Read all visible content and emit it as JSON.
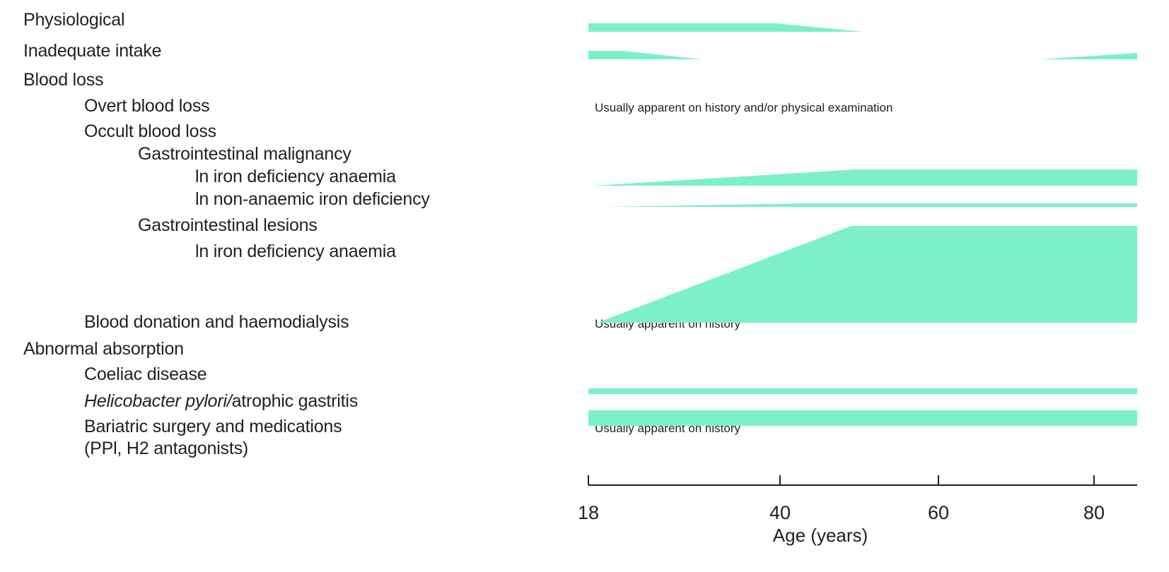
{
  "figure": {
    "labels": [
      {
        "text": "Physiological",
        "indent": 0
      },
      {
        "text": "Inadequate intake",
        "indent": 0
      },
      {
        "text": "Blood loss",
        "indent": 0
      },
      {
        "text": "Overt blood loss",
        "indent": 1
      },
      {
        "text": "Occult blood loss",
        "indent": 1
      },
      {
        "text": "Gastrointestinal malignancy",
        "indent": 2
      },
      {
        "text": "ln iron deficiency anaemia",
        "indent": 3
      },
      {
        "text": "ln non-anaemic iron deficiency",
        "indent": 3
      },
      {
        "text": "Gastrointestinal lesions",
        "indent": 2
      },
      {
        "text": "ln iron deficiency anaemia",
        "indent": 3
      },
      {
        "text": "Blood donation and haemodialysis",
        "indent": 1
      },
      {
        "text": "Abnormal absorption",
        "indent": 0
      },
      {
        "text": "Coeliac disease",
        "indent": 1
      },
      {
        "text_italic": "Helicobacter pylori/",
        "text": "atrophic gastritis",
        "indent": 1
      },
      {
        "text": "Bariatric surgery and medications",
        "indent": 1
      },
      {
        "text": "(PPl, H2 antagonists)",
        "indent": 1
      }
    ]
  },
  "chart_data": {
    "type": "area",
    "xlabel": "Age (years)",
    "x_ticks": [
      "18",
      "40",
      "60",
      "80"
    ],
    "x_tick_values": [
      18,
      40,
      60,
      80
    ],
    "x_range": [
      18,
      85.5
    ],
    "color": "#7DF0C7",
    "axis_color": "#231f20",
    "series": [
      {
        "row": "physiological",
        "label": "Physiological",
        "profile": [
          [
            18,
            1
          ],
          [
            39.5,
            1
          ],
          [
            50.5,
            0
          ]
        ]
      },
      {
        "row": "inadequate_intake",
        "label": "Inadequate intake",
        "profile": [
          [
            18,
            1
          ],
          [
            22,
            1
          ],
          [
            31,
            0
          ]
        ],
        "profile2": [
          [
            73,
            0
          ],
          [
            85.5,
            0.75
          ]
        ]
      },
      {
        "row": "gi_malignancy_ida",
        "label": "Gastrointestinal malignancy - ln iron deficiency anaemia",
        "profile": [
          [
            18.5,
            0
          ],
          [
            49.5,
            1
          ],
          [
            85.5,
            1
          ]
        ]
      },
      {
        "row": "gi_malignancy_naid",
        "label": "Gastrointestinal malignancy - ln non-anaemic iron deficiency",
        "profile": [
          [
            19.5,
            0
          ],
          [
            43.5,
            1
          ],
          [
            85.5,
            1
          ]
        ]
      },
      {
        "row": "gi_lesions_ida",
        "label": "Gastrointestinal lesions - ln iron deficiency anaemia",
        "profile": [
          [
            19,
            0
          ],
          [
            49,
            1
          ],
          [
            85.5,
            1
          ]
        ]
      },
      {
        "row": "coeliac_disease",
        "label": "Coeliac disease",
        "profile": [
          [
            18,
            1
          ],
          [
            85.5,
            1
          ]
        ]
      },
      {
        "row": "h_pylori",
        "label": "Helicobacter pylori/atrophic gastritis",
        "profile": [
          [
            18,
            1
          ],
          [
            85.5,
            1
          ]
        ]
      }
    ],
    "annotations": [
      {
        "row": "overt_blood_loss",
        "text": "Usually apparent on history and/or physical examination"
      },
      {
        "row": "blood_donation",
        "text": "Usually apparent on history"
      },
      {
        "row": "bariatric_surgery",
        "text": "Usually apparent on history"
      }
    ]
  }
}
